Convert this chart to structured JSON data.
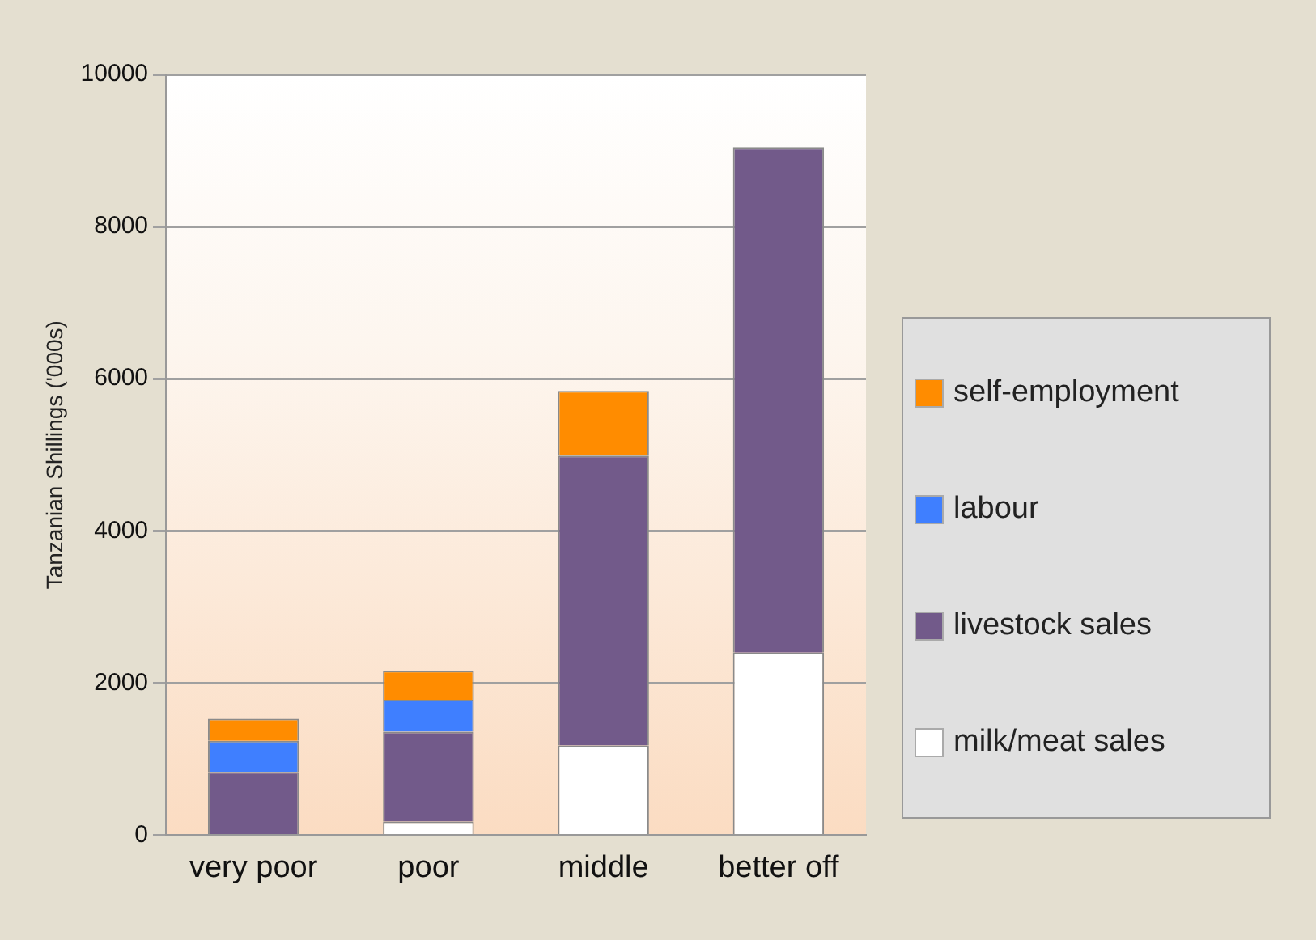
{
  "chart_data": {
    "type": "bar",
    "stacked": true,
    "ylabel": "Tanzanian Shillings ('000s)",
    "categories": [
      "very poor",
      "poor",
      "middle",
      "better off"
    ],
    "series": [
      {
        "name": "milk/meat sales",
        "color": "#ffffff",
        "values": [
          null,
          180,
          1180,
          2400
        ]
      },
      {
        "name": "livestock sales",
        "color": "#725a8a",
        "values": [
          830,
          1180,
          3810,
          6640
        ]
      },
      {
        "name": "labour",
        "color": "#3f7fff",
        "values": [
          410,
          420,
          0,
          0
        ]
      },
      {
        "name": "self-employment",
        "color": "#ff8c00",
        "values": [
          290,
          380,
          850,
          0
        ]
      }
    ],
    "ylim": [
      0,
      10000
    ],
    "yticks": [
      0,
      2000,
      4000,
      6000,
      8000,
      10000
    ],
    "grid": "y",
    "legend": "right"
  }
}
